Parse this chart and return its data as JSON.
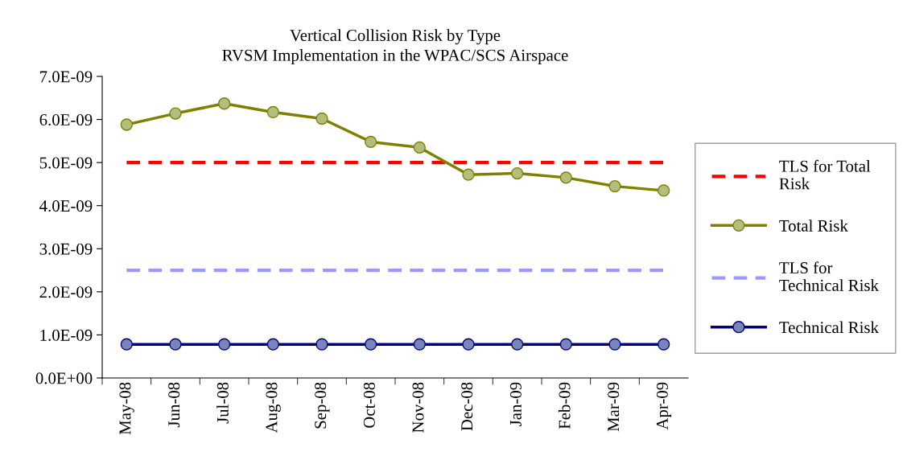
{
  "chart_data": {
    "type": "line",
    "title": "Vertical Collision Risk by Type\nRVSM Implementation in the WPAC/SCS Airspace",
    "categories": [
      "May-08",
      "Jun-08",
      "Jul-08",
      "Aug-08",
      "Sep-08",
      "Oct-08",
      "Nov-08",
      "Dec-08",
      "Jan-09",
      "Feb-09",
      "Mar-09",
      "Apr-09"
    ],
    "series": [
      {
        "name": "TLS for Total\nRisk",
        "color": "#ff0000",
        "line_style": "dashed",
        "values": [
          5e-09,
          5e-09,
          5e-09,
          5e-09,
          5e-09,
          5e-09,
          5e-09,
          5e-09,
          5e-09,
          5e-09,
          5e-09,
          5e-09
        ]
      },
      {
        "name": "Total Risk",
        "color": "#808000",
        "marker": "circle",
        "line_style": "solid",
        "values": [
          5.88e-09,
          6.14e-09,
          6.37e-09,
          6.17e-09,
          6.02e-09,
          5.48e-09,
          5.35e-09,
          4.72e-09,
          4.75e-09,
          4.65e-09,
          4.45e-09,
          4.35e-09
        ]
      },
      {
        "name": "TLS for\nTechnical Risk",
        "color": "#9999ff",
        "line_style": "dashed",
        "values": [
          2.5e-09,
          2.5e-09,
          2.5e-09,
          2.5e-09,
          2.5e-09,
          2.5e-09,
          2.5e-09,
          2.5e-09,
          2.5e-09,
          2.5e-09,
          2.5e-09,
          2.5e-09
        ]
      },
      {
        "name": "Technical Risk",
        "color": "#000080",
        "marker": "circle",
        "line_style": "solid",
        "values": [
          7.8e-10,
          7.8e-10,
          7.8e-10,
          7.8e-10,
          7.8e-10,
          7.8e-10,
          7.8e-10,
          7.8e-10,
          7.8e-10,
          7.8e-10,
          7.8e-10,
          7.8e-10
        ]
      }
    ],
    "ylim": [
      0,
      7e-09
    ],
    "yticks": [
      {
        "value": 0,
        "label": "0.0E+00"
      },
      {
        "value": 1e-09,
        "label": "1.0E-09"
      },
      {
        "value": 2e-09,
        "label": "2.0E-09"
      },
      {
        "value": 3e-09,
        "label": "3.0E-09"
      },
      {
        "value": 4e-09,
        "label": "4.0E-09"
      },
      {
        "value": 5e-09,
        "label": "5.0E-09"
      },
      {
        "value": 6e-09,
        "label": "6.0E-09"
      },
      {
        "value": 7e-09,
        "label": "7.0E-09"
      }
    ],
    "grid": false,
    "legend": "right"
  }
}
